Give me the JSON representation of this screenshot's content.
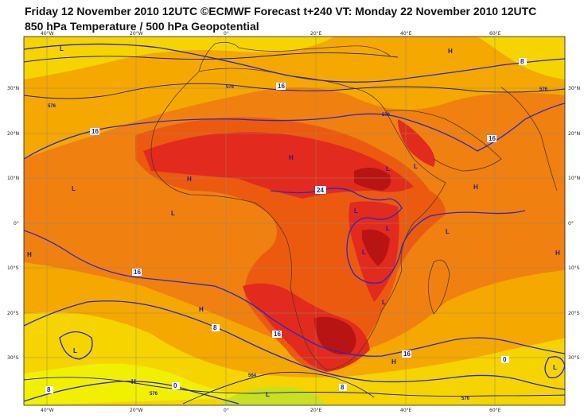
{
  "header": {
    "title_line1": "Friday 12 November 2010 12UTC ©ECMWF Forecast t+240 VT: Monday 22 November 2010 12UTC",
    "title_line2": "850 hPa Temperature / 500 hPa Geopotential"
  },
  "axes": {
    "lon_ticks": [
      "40°W",
      "20°W",
      "0°",
      "20°E",
      "40°E",
      "60°E"
    ],
    "lat_ticks_left": [
      "30°N",
      "20°N",
      "10°N",
      "0°",
      "10°S",
      "20°S",
      "30°S"
    ],
    "lat_ticks_right": [
      "30°N",
      "20°N",
      "10°N",
      "0°",
      "10°S",
      "20°S",
      "30°S"
    ]
  },
  "temperature_labels": [
    "16",
    "16",
    "16",
    "24",
    "16",
    "8",
    "16",
    "16",
    "8",
    "0",
    "0",
    "8",
    "8"
  ],
  "geopotential_labels": [
    "576",
    "576",
    "576",
    "576",
    "564",
    "576",
    "576"
  ],
  "pressure_markers": [
    "L",
    "L",
    "L",
    "L",
    "L",
    "H",
    "H",
    "H",
    "H",
    "H",
    "L",
    "L",
    "L",
    "H",
    "L",
    "L",
    "H",
    "H",
    "H",
    "L",
    "L",
    "L"
  ],
  "colors": {
    "band_cold": "#f0f000",
    "band_cool": "#f5d400",
    "band_mild": "#f5a800",
    "band_warm": "#f08010",
    "band_hot": "#ec5a10",
    "band_hotter": "#e22a1e",
    "band_hottest": "#b81414",
    "band_green": "#c8e020",
    "contour": "#2828c8",
    "coast": "#5a3a1a",
    "grid": "#9a8a60"
  }
}
